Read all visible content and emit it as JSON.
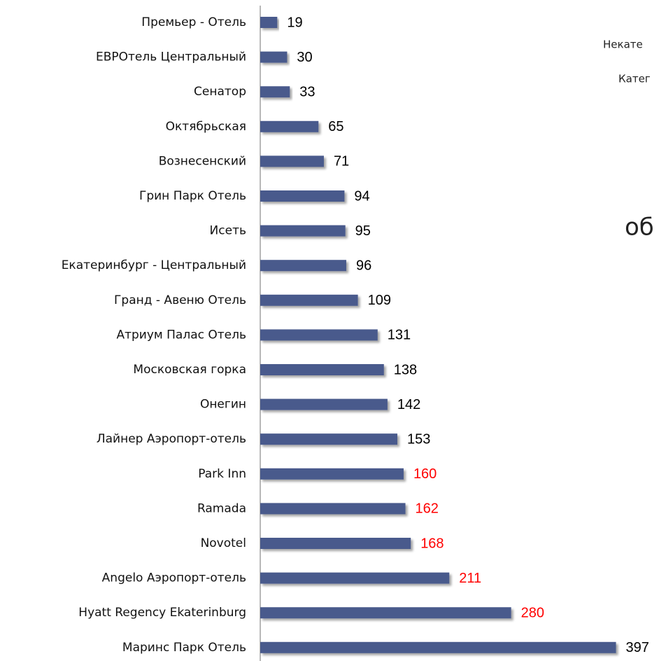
{
  "chart_data": {
    "type": "barh",
    "categories": [
      "Премьер - Отель",
      "ЕВРОтель Центральный",
      "Сенатор",
      "Октябрьская",
      "Вознесенский",
      "Грин Парк Отель",
      "Исеть",
      "Екатеринбург - Центральный",
      "Гранд - Авеню Отель",
      "Атриум Палас Отель",
      "Московская горка",
      "Онегин",
      "Лайнер Аэропорт-отель",
      "Park Inn",
      "Ramada",
      "Novotel",
      "Angelo Аэропорт-отель",
      "Hyatt Regency Ekaterinburg",
      "Маринс Парк Отель"
    ],
    "values": [
      19,
      30,
      33,
      65,
      71,
      94,
      95,
      96,
      109,
      131,
      138,
      142,
      153,
      160,
      162,
      168,
      211,
      280,
      397
    ],
    "color": "#4a5a8c",
    "value_label_colors": [
      "#000000",
      "#000000",
      "#000000",
      "#000000",
      "#000000",
      "#000000",
      "#000000",
      "#000000",
      "#000000",
      "#000000",
      "#000000",
      "#000000",
      "#000000",
      "#ff0000",
      "#ff0000",
      "#ff0000",
      "#ff0000",
      "#ff0000",
      "#000000"
    ],
    "xlim": [
      0,
      445
    ],
    "annotations": [
      "Некате",
      "Катег",
      "об"
    ]
  }
}
